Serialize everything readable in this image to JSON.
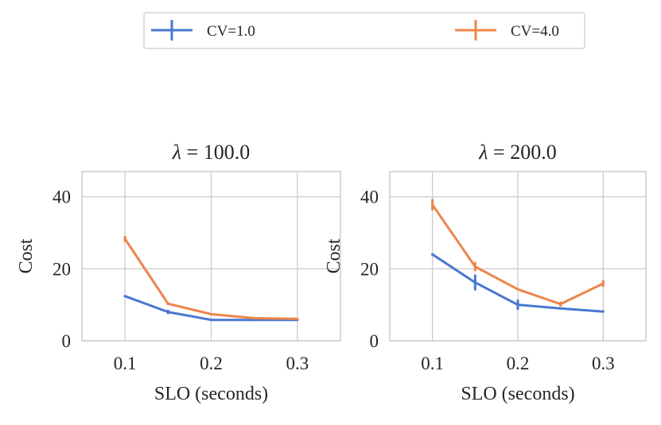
{
  "legend": {
    "entries": [
      {
        "label": "CV=1.0",
        "color": "#4878d0"
      },
      {
        "label": "CV=4.0",
        "color": "#ee854a"
      }
    ]
  },
  "chart_data": [
    {
      "type": "line",
      "title": "λ = 100.0",
      "title_symbol": "λ",
      "title_rest": " = 100.0",
      "xlabel": "SLO (seconds)",
      "ylabel": "Cost",
      "xlim": [
        0.05,
        0.35
      ],
      "ylim": [
        0,
        47
      ],
      "xticks": [
        0.1,
        0.2,
        0.3
      ],
      "xtick_labels": [
        "0.1",
        "0.2",
        "0.3"
      ],
      "yticks": [
        0,
        20,
        40
      ],
      "ytick_labels": [
        "0",
        "20",
        "40"
      ],
      "grid": true,
      "x": [
        0.1,
        0.15,
        0.2,
        0.25,
        0.3
      ],
      "series": [
        {
          "name": "CV=1.0",
          "values": [
            12.4,
            8.0,
            5.8,
            5.8,
            5.8
          ],
          "err": [
            0.3,
            0.6,
            0.3,
            0.2,
            0.2
          ]
        },
        {
          "name": "CV=4.0",
          "values": [
            28.3,
            10.3,
            7.4,
            6.3,
            6.1
          ],
          "err": [
            0.8,
            0.4,
            0.3,
            0.2,
            0.2
          ]
        }
      ]
    },
    {
      "type": "line",
      "title": "λ = 200.0",
      "title_symbol": "λ",
      "title_rest": " = 200.0",
      "xlabel": "SLO (seconds)",
      "ylabel": "Cost",
      "xlim": [
        0.05,
        0.35
      ],
      "ylim": [
        0,
        47
      ],
      "xticks": [
        0.1,
        0.2,
        0.3
      ],
      "xtick_labels": [
        "0.1",
        "0.2",
        "0.3"
      ],
      "yticks": [
        0,
        20,
        40
      ],
      "ytick_labels": [
        "0",
        "20",
        "40"
      ],
      "grid": true,
      "x": [
        0.1,
        0.15,
        0.2,
        0.25,
        0.3
      ],
      "series": [
        {
          "name": "CV=1.0",
          "values": [
            24.0,
            16.2,
            10.0,
            9.0,
            8.1
          ],
          "err": [
            0.3,
            2.2,
            1.4,
            0.3,
            0.2
          ]
        },
        {
          "name": "CV=4.0",
          "values": [
            37.8,
            20.6,
            14.3,
            10.2,
            15.9
          ],
          "err": [
            1.6,
            1.3,
            0.3,
            0.7,
            0.9
          ]
        }
      ]
    }
  ]
}
